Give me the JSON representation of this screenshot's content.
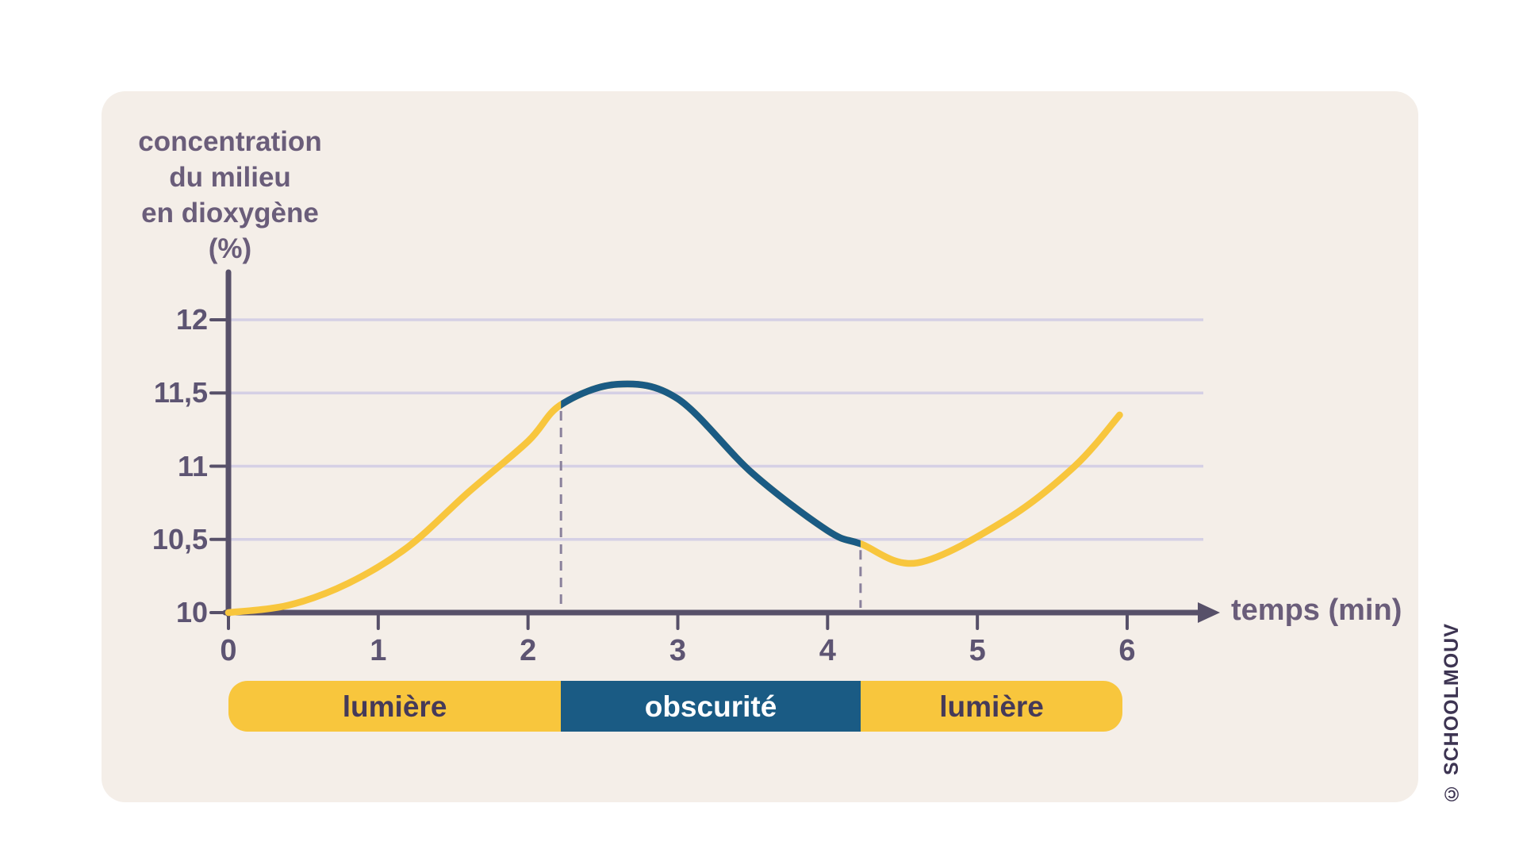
{
  "page": {
    "background": "#ffffff"
  },
  "card": {
    "background": "#f4eee8"
  },
  "axis_title_y": "concentration\ndu milieu\nen dioxygène\n(%)",
  "axis_title_x": "temps (min)",
  "watermark": "© SCHOOLMOUV",
  "colors": {
    "card_bg": "#f4eee8",
    "light_phase": "#F8C63D",
    "dark_phase": "#1A5B84",
    "axis": "#575069",
    "grid": "#D5D0E5",
    "tick_text": "#5D5472",
    "title_text": "#6A5D7A",
    "dashed": "#8A819C",
    "bar_text_dark": "#453A59",
    "bar_text_light": "#FFFFFF",
    "watermark_text": "#3D3452"
  },
  "chart_data": {
    "type": "line",
    "title": "",
    "xlabel": "temps (min)",
    "ylabel": "concentration du milieu en dioxygène (%)",
    "xlim": [
      0,
      6.6
    ],
    "ylim": [
      10,
      12.3
    ],
    "grid": "horizontal-only",
    "legend": "none",
    "x_ticks": [
      {
        "value": 0,
        "label": "0"
      },
      {
        "value": 1,
        "label": "1"
      },
      {
        "value": 2,
        "label": "2"
      },
      {
        "value": 3,
        "label": "3"
      },
      {
        "value": 4,
        "label": "4"
      },
      {
        "value": 5,
        "label": "5"
      },
      {
        "value": 6,
        "label": "6"
      }
    ],
    "y_ticks": [
      {
        "value": 10,
        "label": "10",
        "gridline": false
      },
      {
        "value": 10.5,
        "label": "10,5",
        "gridline": true
      },
      {
        "value": 11,
        "label": "11",
        "gridline": true
      },
      {
        "value": 11.5,
        "label": "11,5",
        "gridline": true
      },
      {
        "value": 12,
        "label": "12",
        "gridline": true
      }
    ],
    "series": [
      {
        "name": "concentration du milieu en dioxygène",
        "points": [
          [
            0,
            10.0
          ],
          [
            0.4,
            10.05
          ],
          [
            0.8,
            10.2
          ],
          [
            1.2,
            10.45
          ],
          [
            1.6,
            10.82
          ],
          [
            2.0,
            11.17
          ],
          [
            2.22,
            11.42
          ],
          [
            2.6,
            11.56
          ],
          [
            3.0,
            11.46
          ],
          [
            3.5,
            10.95
          ],
          [
            4.0,
            10.56
          ],
          [
            4.22,
            10.47
          ],
          [
            4.6,
            10.34
          ],
          [
            5.2,
            10.64
          ],
          [
            5.65,
            11.0
          ],
          [
            5.95,
            11.35
          ]
        ]
      }
    ],
    "phases": [
      {
        "label": "lumière",
        "from": 0,
        "to": 2.22,
        "color": "light"
      },
      {
        "label": "obscurité",
        "from": 2.22,
        "to": 4.22,
        "color": "dark"
      },
      {
        "label": "lumière",
        "from": 4.22,
        "to": 5.97,
        "color": "light"
      }
    ],
    "dashed_markers": [
      {
        "x": 2.22,
        "y_top": 11.42
      },
      {
        "x": 4.22,
        "y_top": 10.47
      }
    ]
  }
}
